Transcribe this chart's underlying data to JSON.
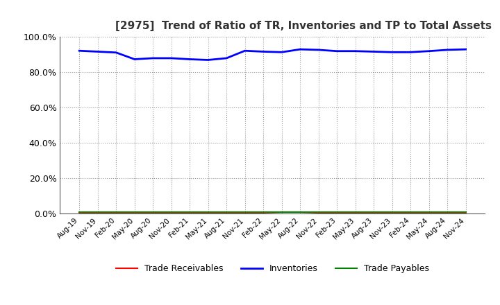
{
  "title": "[2975]  Trend of Ratio of TR, Inventories and TP to Total Assets",
  "x_labels": [
    "Aug-19",
    "Nov-19",
    "Feb-20",
    "May-20",
    "Aug-20",
    "Nov-20",
    "Feb-21",
    "May-21",
    "Aug-21",
    "Nov-21",
    "Feb-22",
    "May-22",
    "Aug-22",
    "Nov-22",
    "Feb-23",
    "May-23",
    "Aug-23",
    "Nov-23",
    "Feb-24",
    "May-24",
    "Aug-24",
    "Nov-24"
  ],
  "inventories": [
    0.92,
    0.915,
    0.91,
    0.872,
    0.878,
    0.878,
    0.872,
    0.868,
    0.878,
    0.92,
    0.915,
    0.912,
    0.928,
    0.925,
    0.918,
    0.918,
    0.915,
    0.912,
    0.912,
    0.918,
    0.925,
    0.928
  ],
  "trade_receivables": [
    0.005,
    0.005,
    0.005,
    0.005,
    0.005,
    0.005,
    0.005,
    0.005,
    0.005,
    0.005,
    0.005,
    0.008,
    0.008,
    0.005,
    0.005,
    0.005,
    0.005,
    0.005,
    0.005,
    0.005,
    0.005,
    0.005
  ],
  "trade_payables": [
    0.007,
    0.007,
    0.007,
    0.007,
    0.007,
    0.007,
    0.007,
    0.007,
    0.007,
    0.007,
    0.007,
    0.007,
    0.007,
    0.007,
    0.007,
    0.007,
    0.007,
    0.007,
    0.007,
    0.007,
    0.007,
    0.007
  ],
  "inv_color": "#0000FF",
  "tr_color": "#FF0000",
  "tp_color": "#008000",
  "ylim": [
    0.0,
    1.0
  ],
  "yticks": [
    0.0,
    0.2,
    0.4,
    0.6,
    0.8,
    1.0
  ],
  "background_color": "#FFFFFF",
  "grid_color": "#999999",
  "title_fontsize": 11,
  "legend_labels": [
    "Trade Receivables",
    "Inventories",
    "Trade Payables"
  ]
}
